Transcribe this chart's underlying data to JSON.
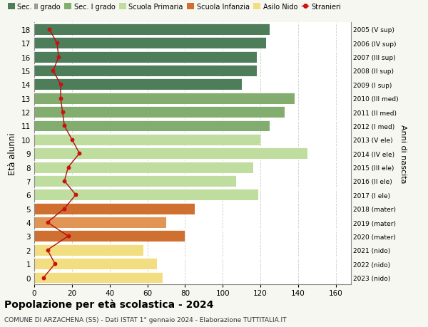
{
  "ages": [
    18,
    17,
    16,
    15,
    14,
    13,
    12,
    11,
    10,
    9,
    8,
    7,
    6,
    5,
    4,
    3,
    2,
    1,
    0
  ],
  "right_labels": [
    "2005 (V sup)",
    "2006 (IV sup)",
    "2007 (III sup)",
    "2008 (II sup)",
    "2009 (I sup)",
    "2010 (III med)",
    "2011 (II med)",
    "2012 (I med)",
    "2013 (V ele)",
    "2014 (IV ele)",
    "2015 (III ele)",
    "2016 (II ele)",
    "2017 (I ele)",
    "2018 (mater)",
    "2019 (mater)",
    "2020 (mater)",
    "2021 (nido)",
    "2022 (nido)",
    "2023 (nido)"
  ],
  "bar_values": [
    125,
    123,
    118,
    118,
    110,
    138,
    133,
    125,
    120,
    145,
    116,
    107,
    119,
    85,
    70,
    80,
    58,
    65,
    68
  ],
  "bar_colors": [
    "#4e7d5a",
    "#4e7d5a",
    "#4e7d5a",
    "#4e7d5a",
    "#4e7d5a",
    "#82ad6e",
    "#82ad6e",
    "#82ad6e",
    "#c0dda0",
    "#c0dda0",
    "#c0dda0",
    "#c0dda0",
    "#c0dda0",
    "#d07030",
    "#e09555",
    "#d07030",
    "#f2de80",
    "#f2de80",
    "#f2de80"
  ],
  "stranieri_values": [
    8,
    12,
    13,
    10,
    14,
    14,
    15,
    16,
    20,
    24,
    18,
    16,
    22,
    16,
    7,
    18,
    7,
    11,
    5
  ],
  "title": "Popolazione per età scolastica - 2024",
  "subtitle": "COMUNE DI ARZACHENA (SS) - Dati ISTAT 1° gennaio 2024 - Elaborazione TUTTITALIA.IT",
  "ylabel": "Età alunni",
  "right_ylabel": "Anni di nascita",
  "legend_labels": [
    "Sec. II grado",
    "Sec. I grado",
    "Scuola Primaria",
    "Scuola Infanzia",
    "Asilo Nido",
    "Stranieri"
  ],
  "legend_colors": [
    "#4e7d5a",
    "#82ad6e",
    "#c0dda0",
    "#d07030",
    "#f2de80",
    "#cc1111"
  ],
  "xlim": [
    0,
    168
  ],
  "xticks": [
    0,
    20,
    40,
    60,
    80,
    100,
    120,
    140,
    160
  ],
  "bg_color": "#f7f7f2",
  "plot_bg_color": "#ffffff",
  "stranieri_line_color": "#aa1111",
  "stranieri_dot_color": "#cc1111",
  "grid_color": "#cccccc"
}
